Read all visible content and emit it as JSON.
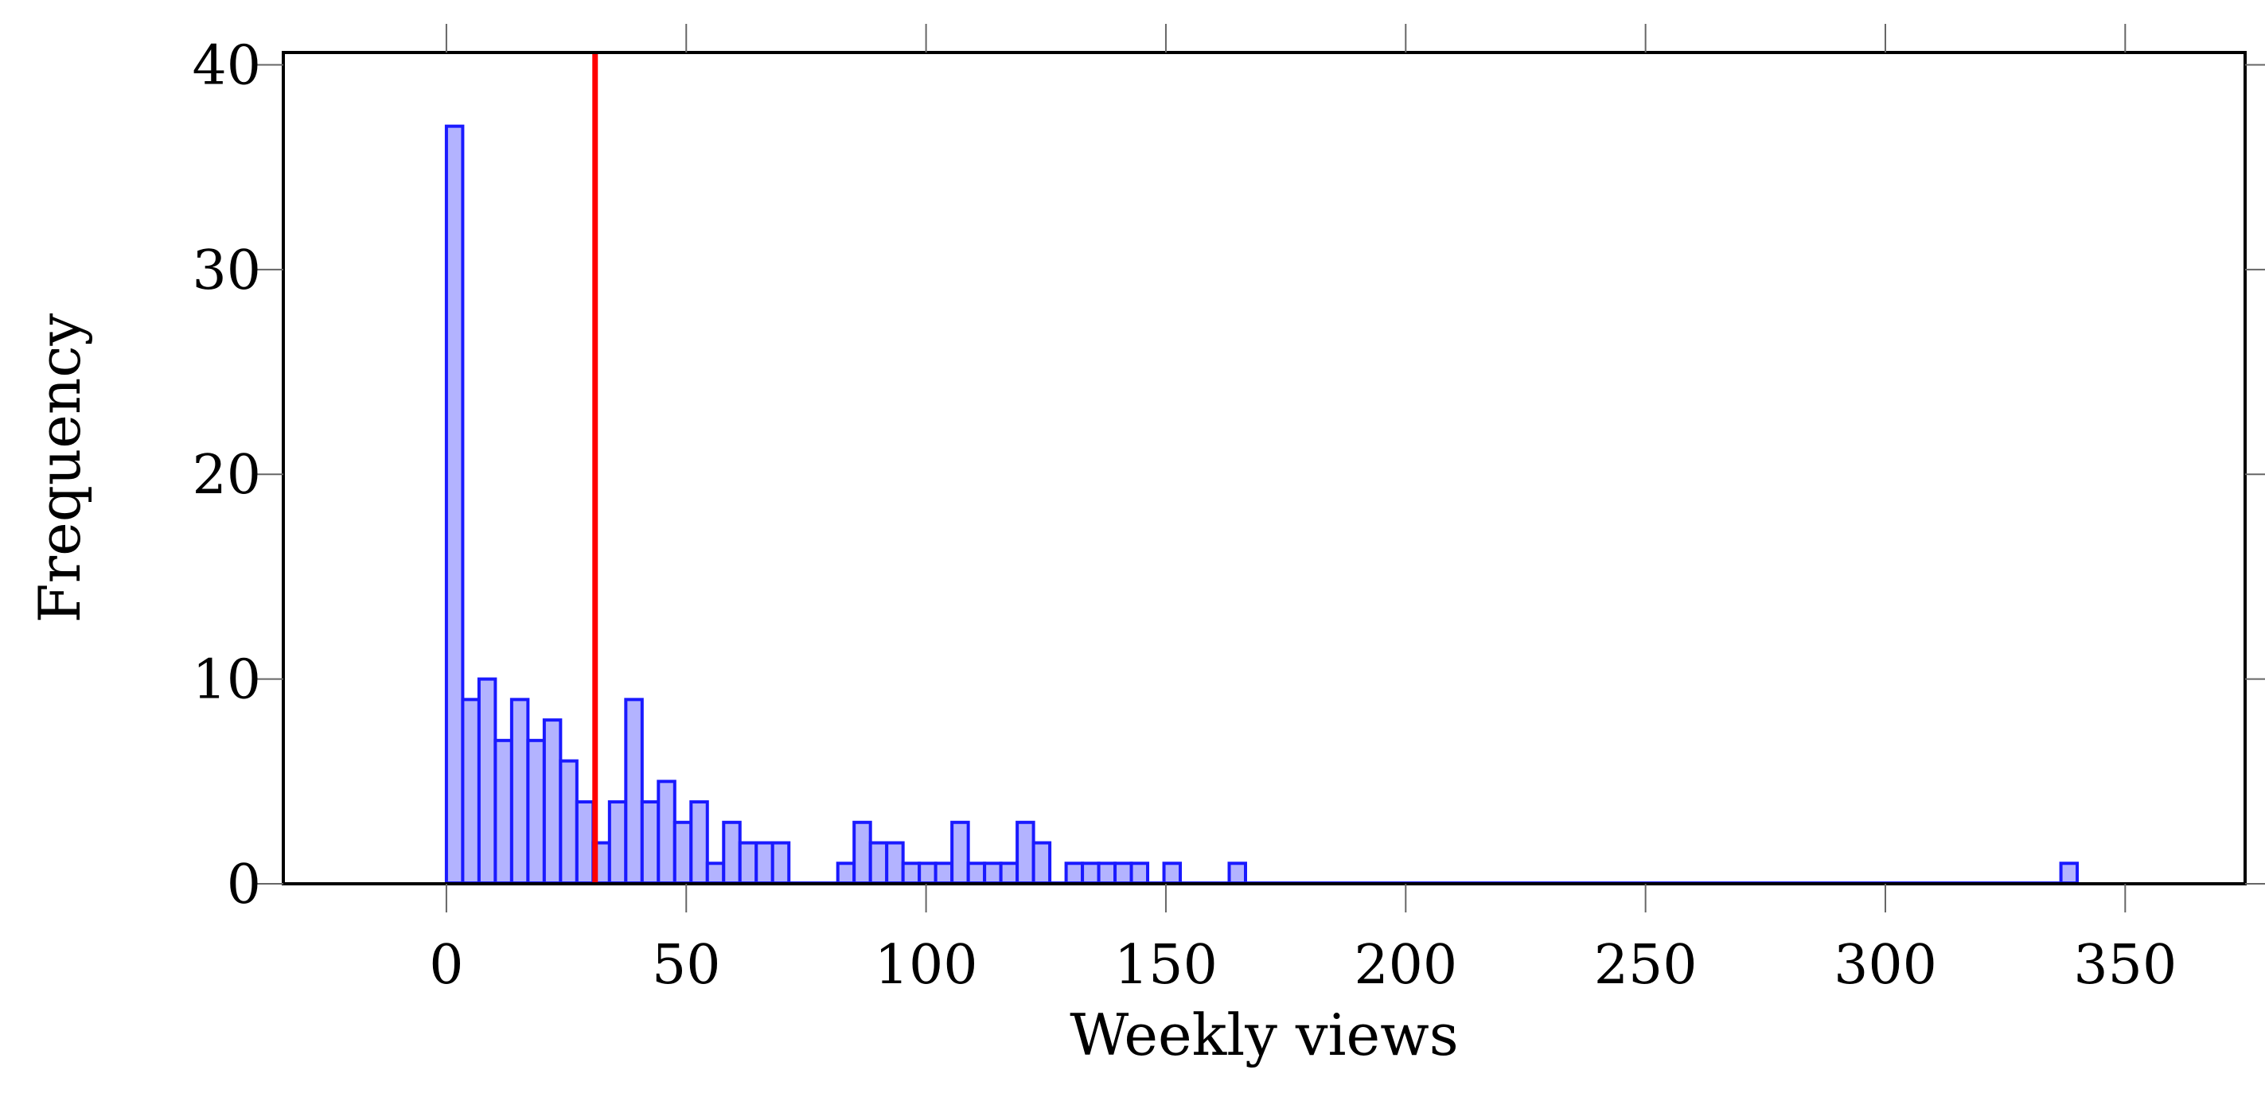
{
  "chart_data": {
    "type": "bar",
    "xlabel": "Weekly views",
    "ylabel": "Frequency",
    "xlim": [
      -34,
      375
    ],
    "ylim": [
      0,
      40.6
    ],
    "xticks": [
      0,
      50,
      100,
      150,
      200,
      250,
      300,
      350
    ],
    "yticks": [
      0,
      10,
      20,
      30,
      40
    ],
    "bin_width": 3.4,
    "bin_start": 0,
    "values": [
      37,
      9,
      10,
      7,
      9,
      7,
      8,
      6,
      4,
      2,
      4,
      9,
      4,
      5,
      3,
      4,
      1,
      3,
      2,
      2,
      2,
      0,
      0,
      0,
      1,
      3,
      2,
      2,
      1,
      1,
      1,
      3,
      1,
      1,
      1,
      3,
      2,
      0,
      1,
      1,
      1,
      1,
      1,
      0,
      1,
      0,
      0,
      0,
      1,
      0,
      0,
      0,
      0,
      0,
      0,
      0,
      0,
      0,
      0,
      0,
      0,
      0,
      0,
      0,
      0,
      0,
      0,
      0,
      0,
      0,
      0,
      0,
      0,
      0,
      0,
      0,
      0,
      0,
      0,
      0,
      0,
      0,
      0,
      0,
      0,
      0,
      0,
      0,
      0,
      0,
      0,
      0,
      0,
      0,
      0,
      0,
      0,
      0,
      0,
      1
    ],
    "reference_line_x": 31,
    "bar_fill": "#b3b3ff",
    "bar_stroke": "#1a1aff",
    "reference_line_color": "#ff0000",
    "grid": false,
    "legend": "none"
  }
}
